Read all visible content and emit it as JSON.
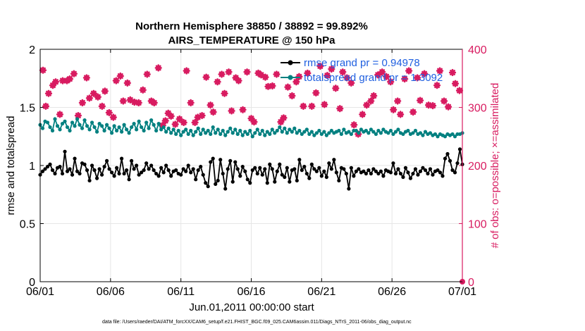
{
  "chart_data": {
    "type": "line",
    "title": "Northern Hemisphere 38850 / 38892 = 99.892%",
    "subtitle": "AIRS_TEMPERATURE @ 150 hPa",
    "xlabel": "Jun.01,2011 00:00:00 start",
    "ylabel_left": "rmse and totalspread",
    "ylabel_right": "# of obs: o=possible; ×=assimilated",
    "footnote": "data file: /Users/raeder/DAI/ATM_forcXX/CAM6_setup/f.e21.FHIST_BGC.f09_025.CAM6assim.011/Diags_NTrS_2011-06/obs_diag_output.nc",
    "x_ticks": [
      "06/01",
      "06/06",
      "06/11",
      "06/16",
      "06/21",
      "06/26",
      "07/01"
    ],
    "x_range_days": [
      0,
      30
    ],
    "ylim_left": [
      0,
      2
    ],
    "yticks_left": [
      "0",
      "0.5",
      "1",
      "1.5",
      "2"
    ],
    "ylim_right": [
      0,
      400
    ],
    "yticks_right": [
      "0",
      "100",
      "200",
      "300",
      "400"
    ],
    "grid": true,
    "legend_position": "top-right",
    "colors": {
      "rmse": "#000000",
      "spread": "#008080",
      "obs": "#d81b60",
      "legend_text": "#1f5fe0",
      "right_axis": "#d81b60"
    },
    "series": [
      {
        "name": "rmse grand pr = 0.94978",
        "axis": "left",
        "values": [
          0.92,
          0.95,
          0.97,
          0.99,
          1.01,
          0.96,
          0.93,
          0.98,
          0.99,
          0.93,
          1.12,
          0.95,
          0.97,
          0.92,
          1.06,
          0.95,
          0.93,
          1.02,
          1.01,
          0.96,
          0.87,
          1.0,
          0.96,
          0.89,
          0.97,
          0.92,
          0.99,
          1.04,
          0.97,
          0.94,
          0.91,
          0.98,
          0.93,
          1.06,
          0.93,
          0.96,
          0.88,
          1.04,
          0.97,
          1.0,
          0.92,
          0.94,
          0.96,
          1.02,
          0.97,
          1.0,
          0.96,
          0.93,
          0.91,
          0.98,
          0.94,
          1.0,
          0.96,
          0.91,
          0.95,
          0.96,
          0.93,
          0.92,
          0.97,
          0.95,
          1.0,
          0.94,
          0.97,
          0.88,
          0.96,
          0.99,
          0.92,
          0.85,
          0.82,
          1.03,
          1.06,
          0.84,
          0.87,
          1.05,
          0.93,
          0.8,
          0.97,
          1.04,
          0.86,
          1.03,
          0.97,
          0.91,
          0.99,
          0.95,
          0.88,
          0.85,
          0.96,
          0.98,
          0.93,
          0.98,
          0.92,
          0.97,
          0.85,
          1.01,
          0.97,
          0.86,
          0.95,
          1.01,
          0.92,
          0.9,
          0.98,
          0.86,
          0.96,
          0.97,
          0.87,
          1.05,
          0.96,
          0.99,
          0.93,
          0.89,
          1.01,
          0.97,
          0.95,
          0.98,
          0.91,
          0.95,
          0.9,
          1.02,
          0.97,
          1.05,
          0.94,
          0.87,
          0.98,
          0.97,
          0.93,
          0.8,
          0.98,
          0.91,
          0.95,
          0.97,
          0.94,
          0.95,
          0.93,
          0.96,
          0.93,
          0.97,
          0.95,
          0.93,
          0.95,
          0.91,
          0.96,
          0.95,
          0.94,
          1.02,
          0.93,
          0.97,
          0.93,
          0.9,
          0.98,
          0.94,
          0.89,
          0.93,
          0.97,
          0.92,
          0.95,
          0.98,
          0.96,
          0.93,
          0.97,
          0.92,
          0.95,
          0.96,
          0.94,
          0.91,
          1.06,
          1.1,
          1.04,
          0.96,
          0.94,
          1.02,
          1.14,
          1.01
        ]
      },
      {
        "name": "totalspread grand pr = 1.3092",
        "axis": "left",
        "values": [
          1.35,
          1.32,
          1.38,
          1.37,
          1.33,
          1.3,
          1.4,
          1.34,
          1.31,
          1.36,
          1.38,
          1.33,
          1.3,
          1.37,
          1.34,
          1.4,
          1.35,
          1.32,
          1.39,
          1.34,
          1.31,
          1.37,
          1.33,
          1.29,
          1.36,
          1.34,
          1.3,
          1.35,
          1.32,
          1.28,
          1.34,
          1.3,
          1.33,
          1.29,
          1.35,
          1.31,
          1.28,
          1.33,
          1.36,
          1.31,
          1.38,
          1.33,
          1.3,
          1.37,
          1.32,
          1.39,
          1.35,
          1.3,
          1.36,
          1.31,
          1.33,
          1.29,
          1.32,
          1.28,
          1.31,
          1.27,
          1.3,
          1.26,
          1.29,
          1.31,
          1.27,
          1.3,
          1.26,
          1.29,
          1.32,
          1.27,
          1.31,
          1.28,
          1.3,
          1.27,
          1.33,
          1.28,
          1.31,
          1.27,
          1.3,
          1.26,
          1.29,
          1.32,
          1.28,
          1.31,
          1.27,
          1.3,
          1.26,
          1.29,
          1.27,
          1.3,
          1.25,
          1.28,
          1.31,
          1.27,
          1.3,
          1.26,
          1.29,
          1.27,
          1.31,
          1.28,
          1.3,
          1.33,
          1.29,
          1.32,
          1.28,
          1.31,
          1.29,
          1.32,
          1.28,
          1.3,
          1.27,
          1.29,
          1.31,
          1.27,
          1.29,
          1.26,
          1.28,
          1.3,
          1.27,
          1.29,
          1.26,
          1.28,
          1.3,
          1.28,
          1.29,
          1.3,
          1.27,
          1.31,
          1.28,
          1.29,
          1.27,
          1.3,
          1.3,
          1.28,
          1.31,
          1.29,
          1.3,
          1.28,
          1.31,
          1.29,
          1.27,
          1.3,
          1.28,
          1.31,
          1.29,
          1.28,
          1.3,
          1.27,
          1.29,
          1.31,
          1.28,
          1.27,
          1.29,
          1.3,
          1.27,
          1.28,
          1.3,
          1.27,
          1.28,
          1.26,
          1.29,
          1.27,
          1.28,
          1.26,
          1.27,
          1.25,
          1.27,
          1.26,
          1.25,
          1.27,
          1.26,
          1.27,
          1.25,
          1.27,
          1.27,
          1.28
        ]
      },
      {
        "name": "# of obs",
        "axis": "right",
        "points": [
          [
            0.2,
            364
          ],
          [
            0.4,
            302
          ],
          [
            0.6,
            324
          ],
          [
            0.9,
            338
          ],
          [
            1.1,
            344
          ],
          [
            1.4,
            288
          ],
          [
            1.6,
            346
          ],
          [
            1.9,
            346
          ],
          [
            2.1,
            349
          ],
          [
            2.4,
            358
          ],
          [
            2.7,
            286
          ],
          [
            3.0,
            308
          ],
          [
            3.3,
            351
          ],
          [
            3.5,
            316
          ],
          [
            3.8,
            324
          ],
          [
            4.1,
            318
          ],
          [
            4.4,
            302
          ],
          [
            4.6,
            328
          ],
          [
            4.9,
            291
          ],
          [
            5.2,
            283
          ],
          [
            5.4,
            346
          ],
          [
            5.7,
            354
          ],
          [
            5.9,
            311
          ],
          [
            6.2,
            342
          ],
          [
            6.4,
            313
          ],
          [
            6.7,
            309
          ],
          [
            7.0,
            308
          ],
          [
            7.3,
            330
          ],
          [
            7.6,
            357
          ],
          [
            7.9,
            311
          ],
          [
            8.1,
            308
          ],
          [
            8.4,
            368
          ],
          [
            8.7,
            269
          ],
          [
            8.9,
            277
          ],
          [
            9.1,
            290
          ],
          [
            9.3,
            285
          ],
          [
            9.6,
            271
          ],
          [
            9.9,
            280
          ],
          [
            10.2,
            274
          ],
          [
            10.4,
            363
          ],
          [
            10.7,
            308
          ],
          [
            11.0,
            274
          ],
          [
            11.2,
            283
          ],
          [
            11.5,
            286
          ],
          [
            11.8,
            352
          ],
          [
            12.1,
            304
          ],
          [
            12.3,
            292
          ],
          [
            12.6,
            344
          ],
          [
            12.9,
            357
          ],
          [
            13.1,
            324
          ],
          [
            13.4,
            361
          ],
          [
            13.6,
            294
          ],
          [
            13.9,
            351
          ],
          [
            14.1,
            346
          ],
          [
            14.4,
            296
          ],
          [
            14.7,
            361
          ],
          [
            15.0,
            281
          ],
          [
            15.2,
            275
          ],
          [
            15.5,
            359
          ],
          [
            15.7,
            356
          ],
          [
            16.0,
            352
          ],
          [
            16.2,
            336
          ],
          [
            16.5,
            337
          ],
          [
            16.8,
            357
          ],
          [
            17.1,
            275
          ],
          [
            17.3,
            282
          ],
          [
            17.6,
            335
          ],
          [
            17.9,
            320
          ],
          [
            18.2,
            344
          ],
          [
            18.4,
            353
          ],
          [
            18.7,
            302
          ],
          [
            19.0,
            359
          ],
          [
            19.3,
            302
          ],
          [
            19.6,
            325
          ],
          [
            19.9,
            371
          ],
          [
            20.2,
            305
          ],
          [
            20.4,
            355
          ],
          [
            20.7,
            366
          ],
          [
            21.0,
            333
          ],
          [
            21.3,
            298
          ],
          [
            21.5,
            361
          ],
          [
            21.8,
            351
          ],
          [
            22.1,
            342
          ],
          [
            22.3,
            270
          ],
          [
            22.6,
            254
          ],
          [
            22.9,
            288
          ],
          [
            23.2,
            304
          ],
          [
            23.5,
            311
          ],
          [
            23.7,
            320
          ],
          [
            24.0,
            356
          ],
          [
            24.3,
            361
          ],
          [
            24.6,
            353
          ],
          [
            24.9,
            344
          ],
          [
            25.1,
            296
          ],
          [
            25.4,
            311
          ],
          [
            25.6,
            288
          ],
          [
            25.9,
            349
          ],
          [
            26.2,
            363
          ],
          [
            26.5,
            292
          ],
          [
            26.8,
            351
          ],
          [
            27.0,
            312
          ],
          [
            27.3,
            358
          ],
          [
            27.6,
            304
          ],
          [
            27.9,
            303
          ],
          [
            28.2,
            338
          ],
          [
            28.4,
            363
          ],
          [
            28.7,
            311
          ],
          [
            29.0,
            301
          ],
          [
            29.3,
            360
          ],
          [
            29.5,
            341
          ],
          [
            29.8,
            329
          ],
          [
            30.0,
            0
          ]
        ]
      }
    ],
    "legend": [
      "rmse grand pr = 0.94978",
      "totalspread grand pr = 1.3092"
    ]
  }
}
